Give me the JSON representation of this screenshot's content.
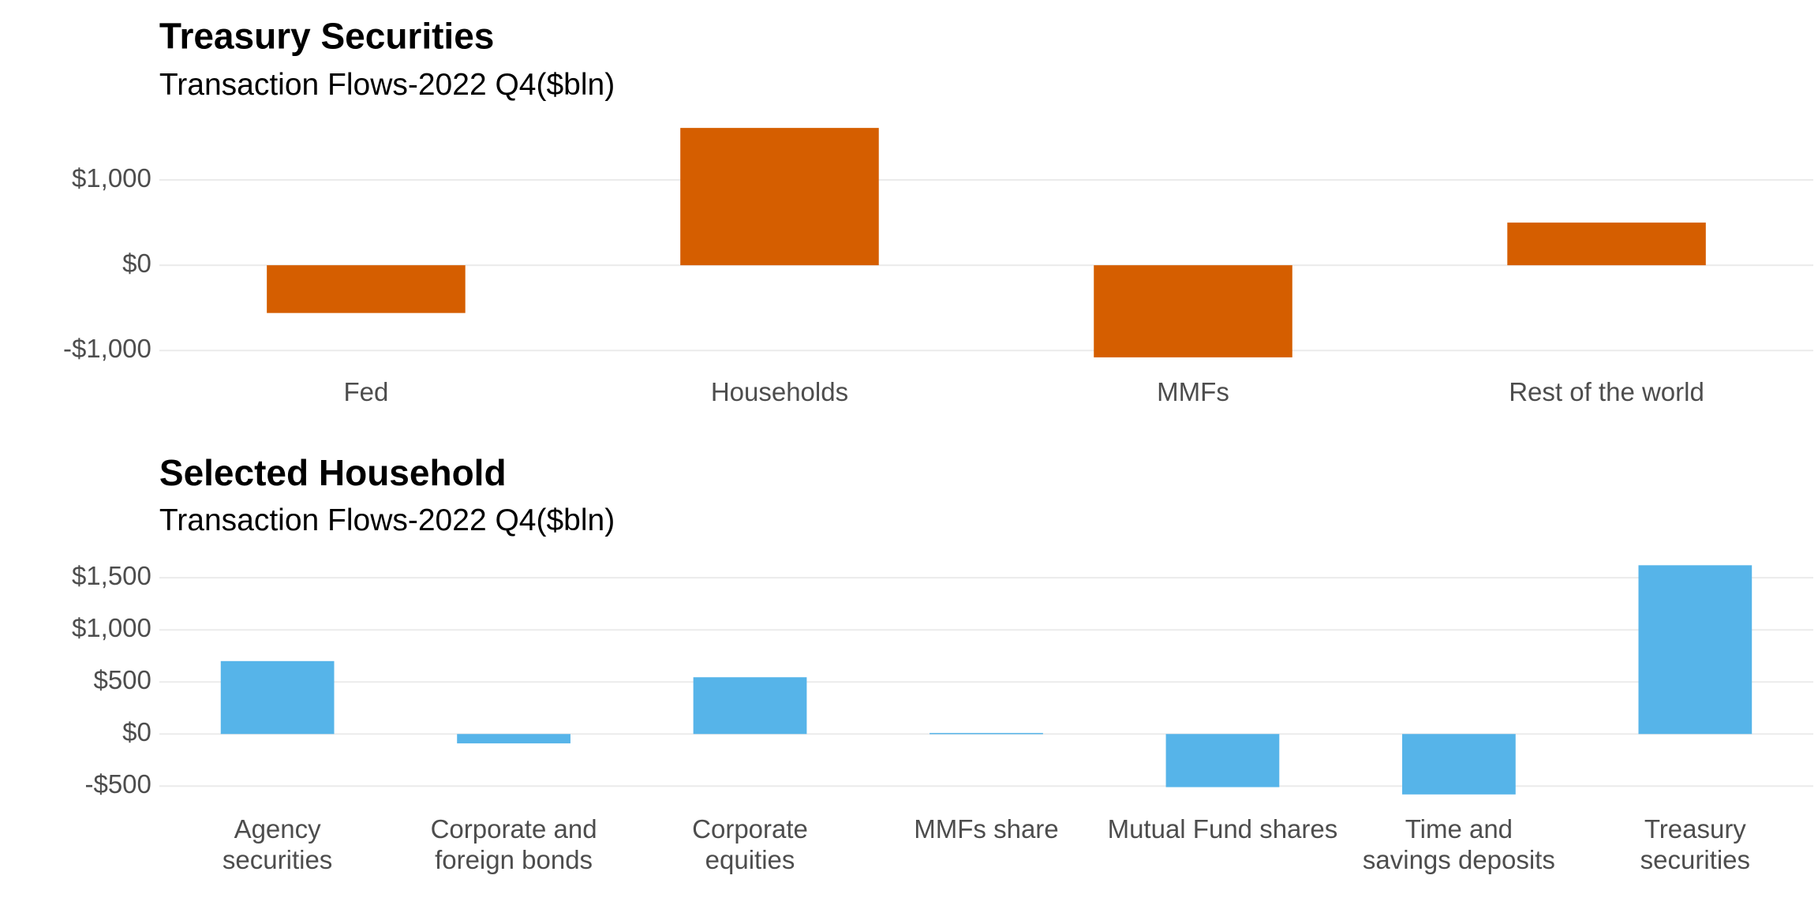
{
  "chart_data": [
    {
      "type": "bar",
      "title": "Treasury Securities",
      "subtitle": "Transaction Flows-2022 Q4($bln)",
      "categories": [
        "Fed",
        "Households",
        "MMFs",
        "Rest of the world"
      ],
      "values": [
        -560,
        1610,
        -1080,
        500
      ],
      "color": "#d55e00",
      "ylim": [
        -1220,
        1750
      ],
      "yticks": [
        {
          "value": -1000,
          "label": "-$1,000"
        },
        {
          "value": 0,
          "label": "$0"
        },
        {
          "value": 1000,
          "label": "$1,000"
        }
      ],
      "grid": true
    },
    {
      "type": "bar",
      "title": "Selected Household",
      "subtitle": "Transaction Flows-2022 Q4($bln)",
      "categories": [
        "Agency\nsecurities",
        "Corporate and\nforeign bonds",
        "Corporate\nequities",
        "MMFs share",
        "Mutual Fund shares",
        "Time and\nsavings deposits",
        "Treasury securities"
      ],
      "values": [
        700,
        -90,
        545,
        10,
        -510,
        -580,
        1620
      ],
      "color": "#56b4e9",
      "ylim": [
        -680,
        1740
      ],
      "yticks": [
        {
          "value": -500,
          "label": "-$500"
        },
        {
          "value": 0,
          "label": "$0"
        },
        {
          "value": 500,
          "label": "$500"
        },
        {
          "value": 1000,
          "label": "$1,000"
        },
        {
          "value": 1500,
          "label": "$1,500"
        }
      ],
      "grid": true
    }
  ]
}
